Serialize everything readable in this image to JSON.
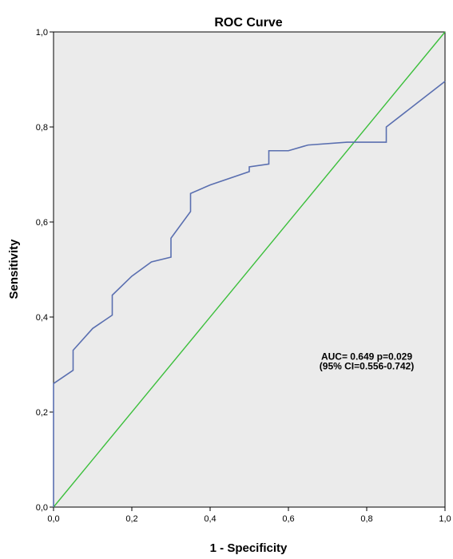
{
  "chart_data": {
    "type": "line",
    "title": "ROC Curve",
    "xlabel": "1 - Specificity",
    "ylabel": "Sensitivity",
    "xlim": [
      0,
      1
    ],
    "ylim": [
      0,
      1
    ],
    "x_ticks": [
      "0,0",
      "0,2",
      "0,4",
      "0,6",
      "0,8",
      "1,0"
    ],
    "y_ticks": [
      "0,0",
      "0,2",
      "0,4",
      "0,6",
      "0,8",
      "1,0"
    ],
    "grid": false,
    "plot_background": "#ebebeb",
    "series": [
      {
        "color": "#5a6fb0",
        "points": [
          [
            0.0,
            0.0
          ],
          [
            0.0,
            0.26
          ],
          [
            0.05,
            0.288
          ],
          [
            0.05,
            0.33
          ],
          [
            0.1,
            0.376
          ],
          [
            0.15,
            0.404
          ],
          [
            0.15,
            0.446
          ],
          [
            0.2,
            0.486
          ],
          [
            0.25,
            0.516
          ],
          [
            0.3,
            0.526
          ],
          [
            0.3,
            0.566
          ],
          [
            0.35,
            0.622
          ],
          [
            0.35,
            0.66
          ],
          [
            0.4,
            0.678
          ],
          [
            0.5,
            0.706
          ],
          [
            0.5,
            0.716
          ],
          [
            0.55,
            0.722
          ],
          [
            0.55,
            0.75
          ],
          [
            0.6,
            0.75
          ],
          [
            0.65,
            0.762
          ],
          [
            0.75,
            0.768
          ],
          [
            0.85,
            0.768
          ],
          [
            0.85,
            0.8
          ],
          [
            1.0,
            0.896
          ]
        ]
      },
      {
        "color": "#3cbf3c",
        "points": [
          [
            0.0,
            0.0
          ],
          [
            1.0,
            1.0
          ]
        ]
      }
    ],
    "annotations": [
      {
        "text": "AUC= 0.649 p=0.029",
        "x": 0.8,
        "y": 0.31
      },
      {
        "text": "(95% CI=0.556-0.742)",
        "x": 0.8,
        "y": 0.29
      }
    ]
  }
}
